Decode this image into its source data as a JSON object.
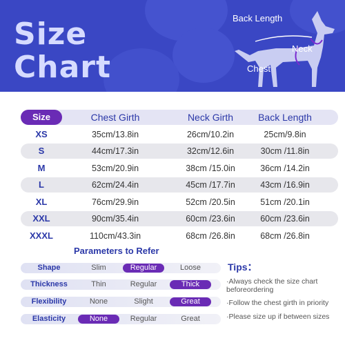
{
  "banner": {
    "title_line1": "Size",
    "title_line2": "Chart",
    "dog_labels": {
      "back_length": "Back Length",
      "neck": "Neck",
      "chest": "Chest"
    },
    "colors": {
      "background": "#3a47c4",
      "title": "#d6dbff",
      "dog": "#c9cdf2"
    }
  },
  "table": {
    "headers": [
      "Size",
      "Chest Girth",
      "Neck Girth",
      "Back Length"
    ],
    "rows": [
      {
        "size": "XS",
        "chest": "35cm/13.8in",
        "neck": "26cm/10.2in",
        "back": "25cm/9.8in"
      },
      {
        "size": "S",
        "chest": "44cm/17.3in",
        "neck": "32cm/12.6in",
        "back": "30cm /11.8in"
      },
      {
        "size": "M",
        "chest": "53cm/20.9in",
        "neck": "38cm /15.0in",
        "back": "36cm /14.2in"
      },
      {
        "size": "L",
        "chest": "62cm/24.4in",
        "neck": "45cm /17.7in",
        "back": "43cm /16.9in"
      },
      {
        "size": "XL",
        "chest": "76cm/29.9in",
        "neck": "52cm /20.5in",
        "back": "51cm /20.1in"
      },
      {
        "size": "XXL",
        "chest": "90cm/35.4in",
        "neck": "60cm /23.6in",
        "back": "60cm /23.6in"
      },
      {
        "size": "XXXL",
        "chest": "110cm/43.3in",
        "neck": "68cm /26.8in",
        "back": "68cm /26.8in"
      }
    ],
    "colors": {
      "header_pill": "#6a2bb5",
      "band": "#e7e7ec"
    }
  },
  "parameters": {
    "title": "Parameters to Refer",
    "rows": [
      {
        "name": "Shape",
        "options": [
          "Slim",
          "Regular",
          "Loose"
        ],
        "selected": 1
      },
      {
        "name": "Thickness",
        "options": [
          "Thin",
          "Regular",
          "Thick"
        ],
        "selected": 2
      },
      {
        "name": "Flexibility",
        "options": [
          "None",
          "Slight",
          "Great"
        ],
        "selected": 2
      },
      {
        "name": "Elasticity",
        "options": [
          "None",
          "Regular",
          "Great"
        ],
        "selected": 0
      }
    ]
  },
  "tips": {
    "title": "Tips：",
    "items": [
      "·Always check the size chart beforeordering",
      "·Follow the chest girth in priority",
      "·Please size up if between sizes"
    ]
  }
}
